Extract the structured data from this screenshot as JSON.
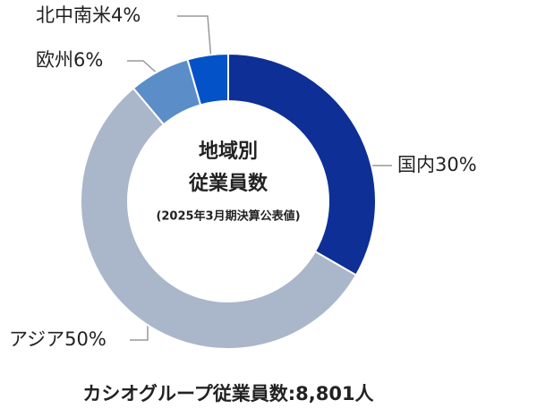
{
  "chart_data": {
    "type": "donut",
    "title_lines": [
      "地域別",
      "従業員数"
    ],
    "subtitle": "(2025年3月期決算公表値)",
    "footer": "カシオグループ従業員数:8,801人",
    "categories": [
      "国内",
      "アジア",
      "欧州",
      "北中南米"
    ],
    "values": [
      30,
      50,
      6,
      4
    ],
    "value_labels": [
      "30%",
      "50%",
      "6%",
      "4%"
    ],
    "colors": [
      "#0d2f96",
      "#aab6c9",
      "#5b8ec9",
      "#0452c7"
    ]
  }
}
